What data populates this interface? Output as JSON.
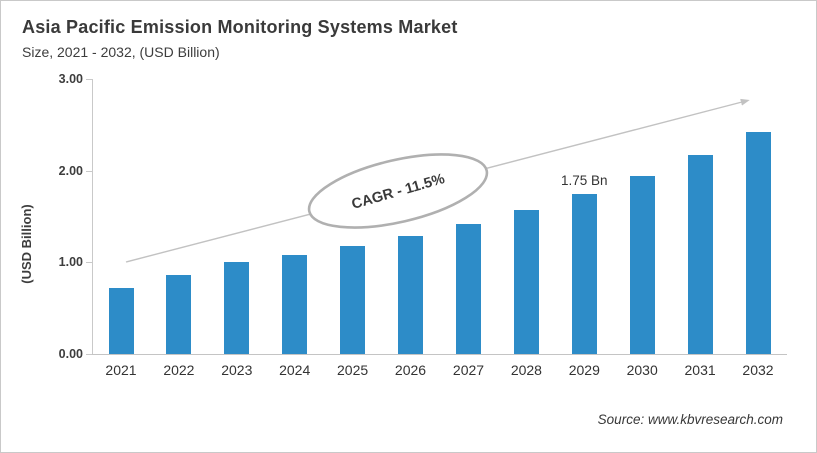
{
  "header": {
    "title": "Asia Pacific Emission Monitoring Systems Market",
    "subtitle": "Size, 2021 - 2032, (USD Billion)"
  },
  "chart_data": {
    "type": "bar",
    "title": "Asia Pacific Emission Monitoring Systems Market",
    "subtitle": "Size, 2021 - 2032, (USD Billion)",
    "categories": [
      "2021",
      "2022",
      "2023",
      "2024",
      "2025",
      "2026",
      "2027",
      "2028",
      "2029",
      "2030",
      "2031",
      "2032"
    ],
    "values": [
      0.72,
      0.86,
      1.0,
      1.08,
      1.18,
      1.29,
      1.42,
      1.57,
      1.75,
      1.94,
      2.17,
      2.42
    ],
    "unit": "USD Billion",
    "xlabel": "",
    "ylabel": "(USD Billion)",
    "ylim": [
      0,
      3
    ],
    "yticks": [
      "0.00",
      "1.00",
      "2.00",
      "3.00"
    ],
    "grid": false,
    "legend_position": "none",
    "bar_color": "#2d8cc8",
    "colors": {
      "trend_line": "#c2c2c2",
      "ellipse_stroke": "#b0b0b0",
      "text": "#3a3a3a"
    },
    "annotations": {
      "cagr": "CAGR - 11.5%",
      "data_label": {
        "category": "2029",
        "text": "1.75 Bn"
      },
      "trend_arrow": true
    }
  },
  "footer": {
    "source": "Source: www.kbvresearch.com"
  }
}
